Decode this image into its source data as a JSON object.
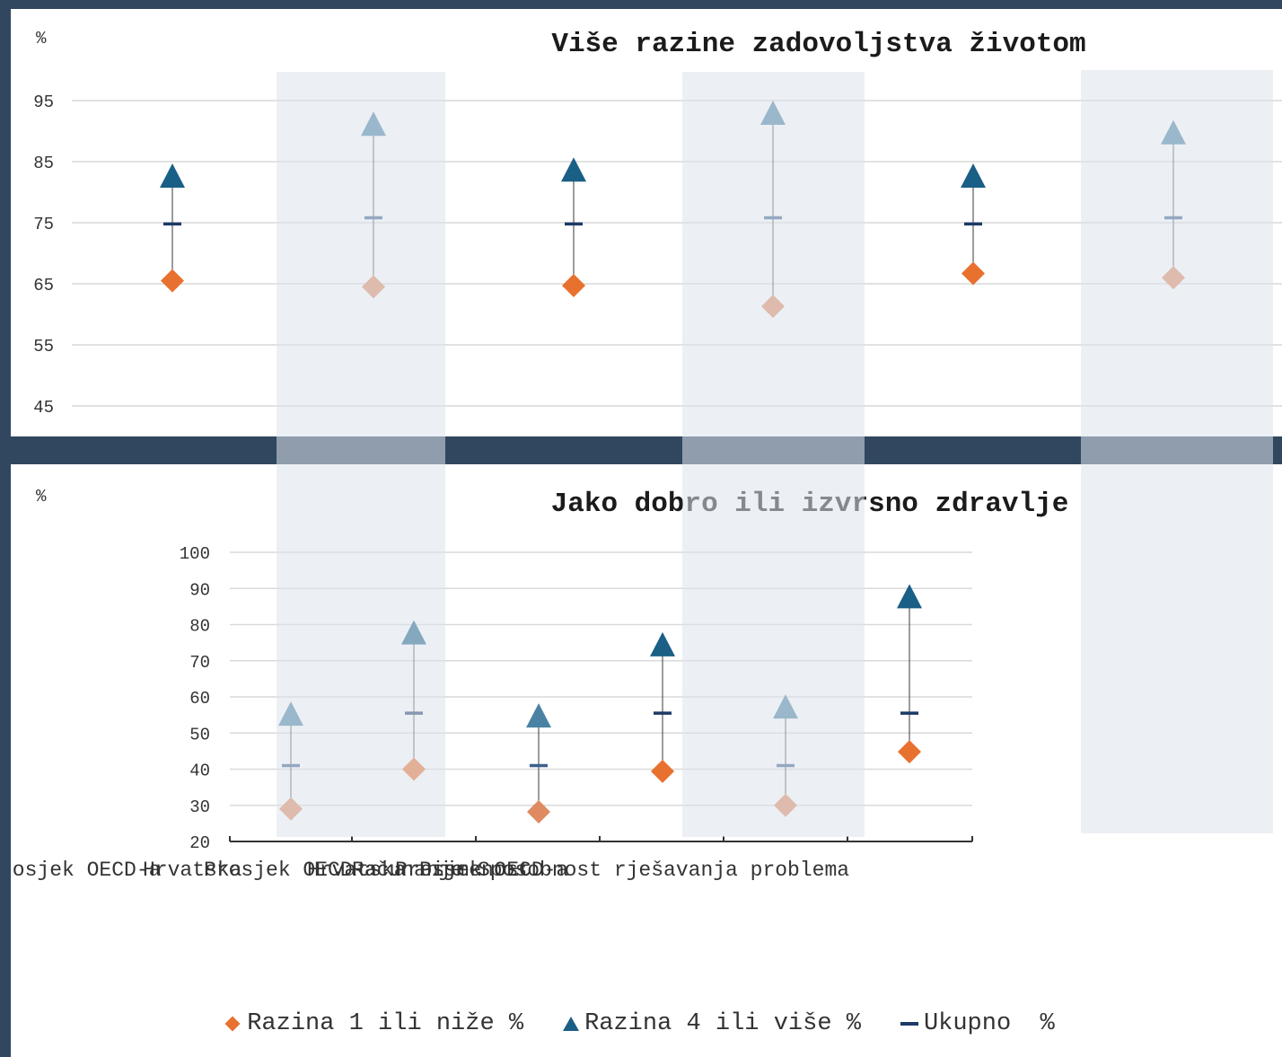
{
  "colors": {
    "razina_1": "#e8712f",
    "razina_1_alt": "#df8a60",
    "razina_4": "#1a5f85",
    "razina_4_alt": "#4a82a3",
    "ukupno": "#1d3a66",
    "ukupno_alt": "#3d5f8a",
    "band": "#dde3ec",
    "background": "#31475f"
  },
  "legend": {
    "items": [
      {
        "label": "Razina 1 ili niže %",
        "icon": "diamond-icon"
      },
      {
        "label": "Razina 4 ili više %",
        "icon": "triangle-icon"
      },
      {
        "label": "Ukupno  %",
        "icon": "dash-icon"
      }
    ]
  },
  "chart_data": [
    {
      "type": "scatter",
      "title": "Više razine zadovoljstva životom",
      "unit_label": "%",
      "ylim": [
        45,
        95
      ],
      "yticks": [
        45,
        55,
        65,
        75,
        85,
        95
      ],
      "grid": true,
      "series": [
        {
          "name": "Razina 1 ili niže %",
          "values": [
            65.5,
            64.5,
            64.7,
            61.3,
            66.7,
            66
          ]
        },
        {
          "name": "Razina 4 ili više %",
          "values": [
            82.5,
            91,
            83.5,
            92.8,
            82.5,
            89.6
          ]
        },
        {
          "name": "Ukupno  %",
          "values": [
            74.8,
            75.8,
            74.8,
            75.8,
            74.8,
            75.8
          ]
        }
      ]
    },
    {
      "type": "scatter",
      "title": "Jako dobro ili izvrsno zdravlje",
      "unit_label": "%",
      "ylim": [
        20,
        100
      ],
      "yticks": [
        20,
        30,
        40,
        50,
        60,
        70,
        80,
        90,
        100
      ],
      "grid": true,
      "categories": [
        "Prosjek OECD-a",
        "Hrvatska",
        "Prosjek OECD-a",
        "Hrvatska",
        "Prosjek OECD-a",
        "Hrvatska"
      ],
      "category_labels_visible": [
        "rosjek OECD-a",
        "Hrvatska",
        "Prosjek OECD-a",
        "Hrvatska",
        "Prosjek OECD-a",
        "Računanje",
        "Pismenost",
        "Sposobnost rješavanja problema"
      ],
      "series": [
        {
          "name": "Razina 1 ili niže %",
          "values": [
            29,
            40,
            28.2,
            39.4,
            30,
            44.8
          ]
        },
        {
          "name": "Razina 4 ili više %",
          "values": [
            55,
            77.5,
            54.5,
            74.2,
            57,
            87.5
          ]
        },
        {
          "name": "Ukupno  %",
          "values": [
            41,
            55.5,
            41,
            55.5,
            41,
            55.5
          ]
        }
      ]
    }
  ]
}
